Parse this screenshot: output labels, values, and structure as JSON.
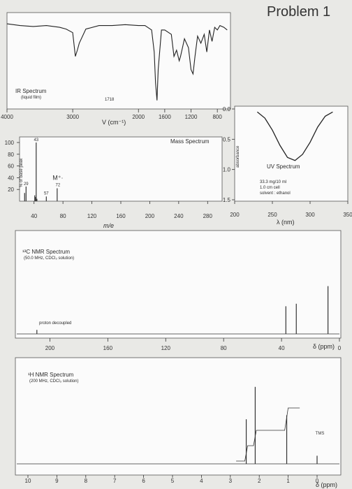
{
  "header": {
    "title": "Problem 1"
  },
  "chart_data": [
    {
      "type": "line",
      "title": "IR Spectrum",
      "subtitle": "(liquid film)",
      "xlabel": "V (cm⁻¹)",
      "xlim": [
        4000,
        600
      ],
      "x_ticks": [
        "4000",
        "3000",
        "2000",
        "1600",
        "1200",
        "800"
      ],
      "annotations": [
        "1718"
      ],
      "x": [
        4000,
        3800,
        3600,
        3400,
        3200,
        3100,
        3000,
        2960,
        2930,
        2900,
        2800,
        2600,
        2400,
        2200,
        2000,
        1900,
        1800,
        1760,
        1740,
        1718,
        1700,
        1650,
        1600,
        1500,
        1460,
        1420,
        1380,
        1360,
        1300,
        1240,
        1200,
        1170,
        1140,
        1100,
        1050,
        1000,
        960,
        920,
        880,
        840,
        800,
        760,
        700,
        650
      ],
      "values": [
        92,
        90,
        89,
        90,
        88,
        86,
        82,
        55,
        62,
        70,
        86,
        90,
        90,
        91,
        90,
        90,
        85,
        60,
        25,
        5,
        40,
        85,
        85,
        80,
        55,
        62,
        50,
        55,
        75,
        65,
        40,
        35,
        55,
        78,
        70,
        80,
        60,
        85,
        72,
        88,
        85,
        90,
        88,
        85
      ]
    },
    {
      "type": "bar",
      "title": "Mass Spectrum",
      "ylabel": "% of base peak",
      "xlabel": "m/e",
      "xlim": [
        20,
        300
      ],
      "ylim": [
        0,
        100
      ],
      "x_ticks": [
        "40",
        "80",
        "120",
        "160",
        "200",
        "240",
        "280"
      ],
      "y_ticks": [
        "100",
        "80",
        "60",
        "40",
        "20"
      ],
      "peak_labels": [
        "43",
        "29",
        "57",
        "M⁺·",
        "72"
      ],
      "x": [
        27,
        29,
        41,
        42,
        43,
        44,
        57,
        72
      ],
      "values": [
        14,
        25,
        10,
        7,
        100,
        4,
        8,
        22
      ]
    },
    {
      "type": "line",
      "title": "UV Spectrum",
      "ylabel": "absorbance",
      "xlabel": "λ (nm)",
      "xlim": [
        200,
        350
      ],
      "ylim": [
        1.5,
        0.0
      ],
      "x_ticks": [
        "200",
        "250",
        "300",
        "350"
      ],
      "y_ticks": [
        "0.0",
        "0.5",
        "1.0",
        "1.5"
      ],
      "notes": [
        "33.3 mg/10 ml",
        "1.0 cm cell",
        "solvent : ethanol"
      ],
      "x": [
        230,
        240,
        250,
        260,
        270,
        280,
        290,
        300,
        310,
        320,
        330
      ],
      "values": [
        0.05,
        0.15,
        0.35,
        0.6,
        0.8,
        0.85,
        0.75,
        0.55,
        0.3,
        0.12,
        0.05
      ]
    },
    {
      "type": "bar",
      "title": "¹³C NMR Spectrum",
      "subtitle": "(50.0 MHz, CDCl₃ solution)",
      "note": "proton decoupled",
      "xlabel": "δ (ppm)",
      "xlim": [
        220,
        0
      ],
      "x_ticks": [
        "200",
        "160",
        "120",
        "80",
        "40",
        "0"
      ],
      "x": [
        209,
        37,
        29.8,
        7.9
      ],
      "values": [
        8,
        55,
        60,
        95
      ]
    },
    {
      "type": "line",
      "title": "¹H NMR Spectrum",
      "subtitle": "(200 MHz, CDCl₃ solution)",
      "xlabel": "δ (ppm)",
      "xlim": [
        10,
        0
      ],
      "x_ticks": [
        "10",
        "9",
        "8",
        "7",
        "6",
        "5",
        "4",
        "3",
        "2",
        "1",
        "0"
      ],
      "peak_labels": [
        "TMS"
      ],
      "integration_steps": [
        22,
        22,
        32
      ],
      "x": [
        2.45,
        2.14,
        1.05,
        0
      ],
      "values": [
        55,
        95,
        60,
        10
      ]
    }
  ]
}
